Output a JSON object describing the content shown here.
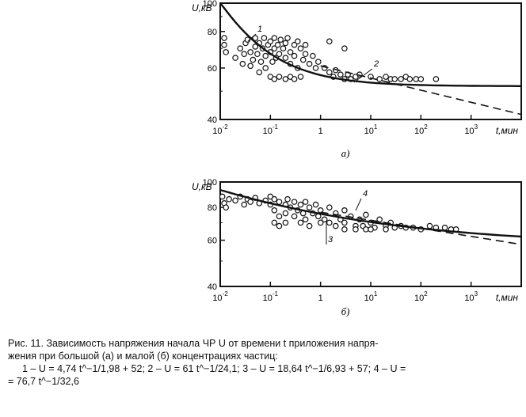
{
  "chart_data": [
    {
      "type": "scatter",
      "panel_label": "а)",
      "ylabel": "U,кВ",
      "xlabel": "t,мин",
      "x_scale": "log",
      "y_scale": "log",
      "xlim": [
        0.01,
        10000
      ],
      "ylim": [
        40,
        100
      ],
      "x_ticks": [
        0.01,
        0.1,
        1,
        10,
        100,
        1000
      ],
      "x_tick_labels": [
        [
          "10",
          "-2"
        ],
        [
          "10",
          "-1"
        ],
        [
          "1",
          ""
        ],
        [
          "10",
          "1"
        ],
        [
          "10",
          "2"
        ],
        [
          "10",
          "3"
        ]
      ],
      "y_ticks": [
        40,
        60,
        80,
        100
      ],
      "y_tick_labels": [
        "40",
        "60",
        "80",
        "100"
      ],
      "series": [
        {
          "name": "1",
          "style": "solid",
          "x_range": [
            0.01,
            10000
          ],
          "formula": {
            "a": 4.74,
            "p": 1.98,
            "c": 52
          }
        },
        {
          "name": "2",
          "style": "dashed",
          "x_range": [
            1,
            10000
          ],
          "formula": {
            "a": 61,
            "p": 24.1,
            "c": 0
          }
        }
      ],
      "points": [
        [
          0.012,
          72
        ],
        [
          0.012,
          76
        ],
        [
          0.013,
          68
        ],
        [
          0.02,
          65
        ],
        [
          0.025,
          70
        ],
        [
          0.028,
          62
        ],
        [
          0.03,
          67
        ],
        [
          0.032,
          73
        ],
        [
          0.035,
          75
        ],
        [
          0.04,
          68
        ],
        [
          0.045,
          64
        ],
        [
          0.05,
          71
        ],
        [
          0.05,
          76
        ],
        [
          0.055,
          67
        ],
        [
          0.06,
          73
        ],
        [
          0.065,
          63
        ],
        [
          0.07,
          70
        ],
        [
          0.075,
          76
        ],
        [
          0.08,
          66
        ],
        [
          0.09,
          72
        ],
        [
          0.1,
          68
        ],
        [
          0.1,
          74
        ],
        [
          0.11,
          63
        ],
        [
          0.12,
          70
        ],
        [
          0.12,
          76
        ],
        [
          0.13,
          65
        ],
        [
          0.14,
          72
        ],
        [
          0.15,
          67
        ],
        [
          0.16,
          75
        ],
        [
          0.18,
          70
        ],
        [
          0.2,
          65
        ],
        [
          0.2,
          73
        ],
        [
          0.22,
          76
        ],
        [
          0.25,
          68
        ],
        [
          0.25,
          62
        ],
        [
          0.3,
          72
        ],
        [
          0.3,
          66
        ],
        [
          0.35,
          74
        ],
        [
          0.35,
          60
        ],
        [
          0.4,
          70
        ],
        [
          0.45,
          64
        ],
        [
          0.5,
          72
        ],
        [
          0.5,
          67
        ],
        [
          0.6,
          62
        ],
        [
          0.7,
          66
        ],
        [
          0.8,
          60
        ],
        [
          0.9,
          63
        ],
        [
          0.1,
          56
        ],
        [
          0.12,
          55
        ],
        [
          0.15,
          56
        ],
        [
          0.2,
          55
        ],
        [
          0.25,
          56
        ],
        [
          0.3,
          55
        ],
        [
          0.4,
          56
        ],
        [
          1.2,
          60
        ],
        [
          1.5,
          58
        ],
        [
          1.8,
          56
        ],
        [
          2,
          59
        ],
        [
          2.5,
          57
        ],
        [
          3,
          55
        ],
        [
          3.5,
          57
        ],
        [
          4,
          55
        ],
        [
          5,
          56
        ],
        [
          6,
          57
        ],
        [
          0.08,
          60
        ],
        [
          0.06,
          58
        ],
        [
          0.04,
          61
        ],
        [
          1.5,
          74
        ],
        [
          3,
          70
        ],
        [
          10,
          56
        ],
        [
          15,
          55
        ],
        [
          20,
          56
        ],
        [
          25,
          55
        ],
        [
          30,
          55
        ],
        [
          40,
          55
        ],
        [
          50,
          56
        ],
        [
          60,
          55
        ],
        [
          80,
          55
        ],
        [
          100,
          55
        ],
        [
          200,
          55
        ]
      ]
    },
    {
      "type": "scatter",
      "panel_label": "б)",
      "ylabel": "U,кВ",
      "xlabel": "t,мин",
      "x_scale": "log",
      "y_scale": "log",
      "xlim": [
        0.01,
        10000
      ],
      "ylim": [
        40,
        100
      ],
      "x_ticks": [
        0.01,
        0.1,
        1,
        10,
        100,
        1000
      ],
      "x_tick_labels": [
        [
          "10",
          "-2"
        ],
        [
          "10",
          "-1"
        ],
        [
          "1",
          ""
        ],
        [
          "10",
          "1"
        ],
        [
          "10",
          "2"
        ],
        [
          "10",
          "3"
        ]
      ],
      "y_ticks": [
        40,
        60,
        80,
        100
      ],
      "y_tick_labels": [
        "40",
        "60",
        "80",
        "100"
      ],
      "series": [
        {
          "name": "3",
          "style": "solid",
          "x_range": [
            0.01,
            10000
          ],
          "formula": {
            "a": 18.64,
            "p": 6.93,
            "c": 57
          }
        },
        {
          "name": "4",
          "style": "dashed",
          "x_range": [
            1,
            10000
          ],
          "formula": {
            "a": 76.7,
            "p": 32.6,
            "c": 0
          }
        }
      ],
      "points": [
        [
          0.011,
          88
        ],
        [
          0.012,
          83
        ],
        [
          0.013,
          80
        ],
        [
          0.015,
          86
        ],
        [
          0.02,
          85
        ],
        [
          0.025,
          88
        ],
        [
          0.03,
          82
        ],
        [
          0.035,
          86
        ],
        [
          0.04,
          84
        ],
        [
          0.05,
          87
        ],
        [
          0.06,
          83
        ],
        [
          0.08,
          85
        ],
        [
          0.1,
          88
        ],
        [
          0.1,
          82
        ],
        [
          0.12,
          86
        ],
        [
          0.12,
          78
        ],
        [
          0.15,
          84
        ],
        [
          0.15,
          74
        ],
        [
          0.2,
          82
        ],
        [
          0.2,
          76
        ],
        [
          0.22,
          86
        ],
        [
          0.25,
          80
        ],
        [
          0.3,
          84
        ],
        [
          0.3,
          74
        ],
        [
          0.35,
          78
        ],
        [
          0.4,
          82
        ],
        [
          0.45,
          76
        ],
        [
          0.5,
          84
        ],
        [
          0.5,
          72
        ],
        [
          0.6,
          80
        ],
        [
          0.7,
          76
        ],
        [
          0.8,
          82
        ],
        [
          0.9,
          74
        ],
        [
          1,
          78
        ],
        [
          1.2,
          72
        ],
        [
          1.5,
          80
        ],
        [
          1.5,
          70
        ],
        [
          2,
          76
        ],
        [
          2.5,
          72
        ],
        [
          3,
          78
        ],
        [
          3,
          70
        ],
        [
          4,
          74
        ],
        [
          5,
          68
        ],
        [
          6,
          72
        ],
        [
          7,
          68
        ],
        [
          8,
          75
        ],
        [
          10,
          70
        ],
        [
          12,
          67
        ],
        [
          15,
          72
        ],
        [
          20,
          68
        ],
        [
          25,
          70
        ],
        [
          30,
          67
        ],
        [
          40,
          68
        ],
        [
          50,
          67
        ],
        [
          70,
          67
        ],
        [
          100,
          66
        ],
        [
          150,
          68
        ],
        [
          200,
          67
        ],
        [
          300,
          67
        ],
        [
          400,
          66
        ],
        [
          500,
          66
        ],
        [
          0.15,
          68
        ],
        [
          0.12,
          70
        ],
        [
          0.2,
          70
        ],
        [
          0.4,
          70
        ],
        [
          0.6,
          68
        ],
        [
          1,
          70
        ],
        [
          2,
          68
        ],
        [
          3,
          66
        ],
        [
          5,
          66
        ],
        [
          8,
          66
        ],
        [
          10,
          66
        ],
        [
          20,
          66
        ]
      ]
    }
  ],
  "caption": {
    "line1": "Рис. 11. Зависимость напряжения начала ЧР U от времени t приложения напря-",
    "line2": "жения при большой (а) и малой (б) концентрациях частиц:",
    "line3": "1 – U = 4,74 t^−1/1,98 + 52; 2 – U = 61 t^−1/24,1; 3 – U = 18,64 t^−1/6,93 + 57; 4 – U =",
    "line4": "= 76,7 t^−1/32,6"
  }
}
